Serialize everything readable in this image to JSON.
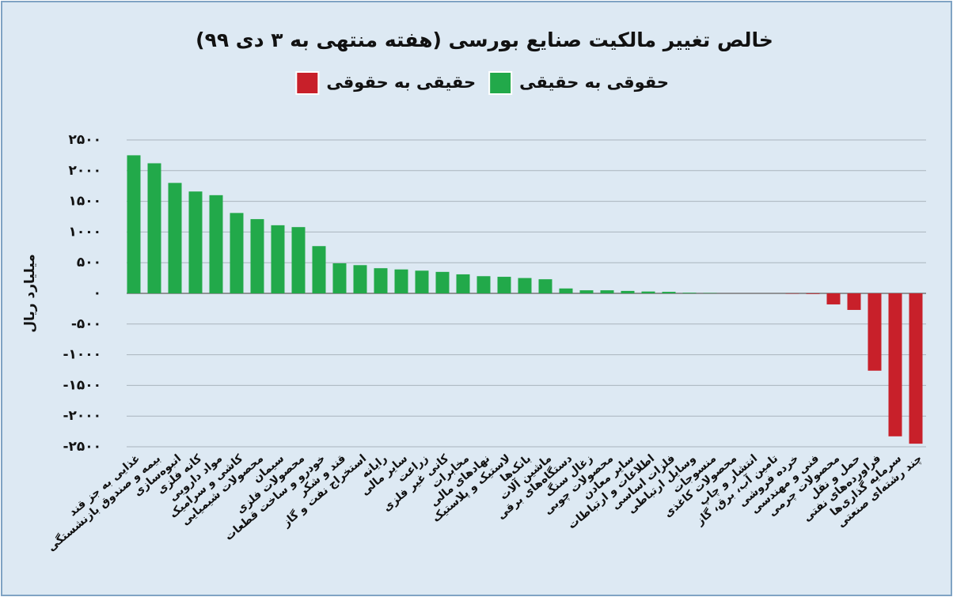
{
  "chart_data": {
    "type": "bar",
    "title": "خالص تغییر مالکیت صنایع بورسی (هفته منتهی به ۳ دی ۹۹)",
    "y_label": "میلیارد ریال",
    "legend": [
      {
        "name": "حقوقی به حقیقی",
        "color": "#22a94a"
      },
      {
        "name": "حقیقی به حقوقی",
        "color": "#c8202a"
      }
    ],
    "categories": [
      "غذایی به جز قند",
      "بیمه و صندوق بازنشستگی",
      "انبوه‌سازی",
      "کانه فلزی",
      "مواد دارویی",
      "کاشی و سرامیک",
      "محصولات شیمیایی",
      "سیمان",
      "محصولات فلزی",
      "خودرو و ساخت قطعات",
      "قند و شکر",
      "استخراج نفت و گاز",
      "رایانه",
      "سایر مالی",
      "زراعت",
      "کانی غیر فلزی",
      "مخابرات",
      "نهادهای مالی",
      "لاستیک و پلاستیک",
      "بانک‌ها",
      "ماشین آلات",
      "دستگاه‌های برقی",
      "زغال سنگ",
      "محصولات چوبی",
      "سایر معادن",
      "اطلاعات و ارتباطات",
      "فلزات اساسی",
      "وسایل ارتباطی",
      "منسوجات",
      "محصولات کاغذی",
      "انتشار و چاپ",
      "تامین آب، برق، گاز",
      "خرده فروشی",
      "فنی و مهندسی",
      "محصولات چرمی",
      "حمل و نقل",
      "فراورده‌های نفتی",
      "سرمایه گذاری‌ها",
      "چند رشته‌ای صنعتی"
    ],
    "values": [
      2250,
      2120,
      1800,
      1660,
      1600,
      1310,
      1210,
      1110,
      1080,
      770,
      490,
      460,
      410,
      390,
      370,
      350,
      310,
      280,
      270,
      250,
      230,
      80,
      50,
      50,
      40,
      30,
      25,
      10,
      5,
      0,
      0,
      0,
      -5,
      -10,
      -180,
      -270,
      -1260,
      -2330,
      -2450
    ],
    "colors": {
      "positive": "#22a94a",
      "negative": "#c8202a"
    },
    "ylim": [
      -2500,
      2500
    ],
    "yticks": [
      {
        "value": 2500,
        "label": "۲۵۰۰"
      },
      {
        "value": 2000,
        "label": "۲۰۰۰"
      },
      {
        "value": 1500,
        "label": "۱۵۰۰"
      },
      {
        "value": 1000,
        "label": "۱۰۰۰"
      },
      {
        "value": 500,
        "label": "۵۰۰"
      },
      {
        "value": 0,
        "label": "۰"
      },
      {
        "value": -500,
        "label": "-۵۰۰"
      },
      {
        "value": -1000,
        "label": "-۱۰۰۰"
      },
      {
        "value": -1500,
        "label": "-۱۵۰۰"
      },
      {
        "value": -2000,
        "label": "-۲۰۰۰"
      },
      {
        "value": -2500,
        "label": "-۲۵۰۰"
      }
    ],
    "grid": true
  }
}
